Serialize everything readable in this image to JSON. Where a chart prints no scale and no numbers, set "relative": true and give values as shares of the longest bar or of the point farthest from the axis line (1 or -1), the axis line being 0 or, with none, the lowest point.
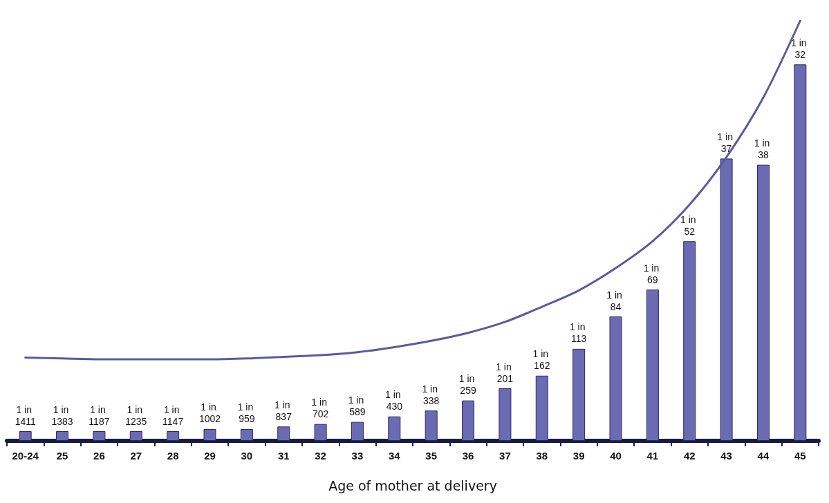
{
  "chart_data": {
    "type": "bar",
    "relative": true,
    "xlabel": "Age of mother at delivery",
    "grid": false,
    "categories": [
      "20-24",
      "25",
      "26",
      "27",
      "28",
      "29",
      "30",
      "31",
      "32",
      "33",
      "34",
      "35",
      "36",
      "37",
      "38",
      "39",
      "40",
      "41",
      "42",
      "43",
      "44",
      "45"
    ],
    "series": [
      {
        "color": "#6b6bb3",
        "values": [
          0.023,
          0.023,
          0.023,
          0.023,
          0.023,
          0.028,
          0.028,
          0.034,
          0.04,
          0.045,
          0.058,
          0.072,
          0.096,
          0.125,
          0.155,
          0.219,
          0.296,
          0.36,
          0.475,
          0.672,
          0.657,
          0.896
        ]
      },
      {
        "type": "line",
        "color": "#5a5aa0",
        "marker": "none",
        "line_style": "solid",
        "values": [
          0.198,
          0.196,
          0.194,
          0.194,
          0.194,
          0.194,
          0.196,
          0.2,
          0.204,
          0.211,
          0.223,
          0.238,
          0.257,
          0.283,
          0.319,
          0.358,
          0.411,
          0.475,
          0.562,
          0.675,
          0.817,
          1
        ]
      }
    ],
    "annotations": [
      {
        "text": "1 in 1411",
        "x": "20-24",
        "y": 0.023
      },
      {
        "text": "1 in 1383",
        "x": "25",
        "y": 0.023
      },
      {
        "text": "1 in 1187",
        "x": "26",
        "y": 0.023
      },
      {
        "text": "1 in 1235",
        "x": "27",
        "y": 0.023
      },
      {
        "text": "1 in 1147",
        "x": "28",
        "y": 0.023
      },
      {
        "text": "1 in 1002",
        "x": "29",
        "y": 0.028
      },
      {
        "text": "1 in 959",
        "x": "30",
        "y": 0.028
      },
      {
        "text": "1 in 837",
        "x": "31",
        "y": 0.034
      },
      {
        "text": "1 in 702",
        "x": "32",
        "y": 0.04
      },
      {
        "text": "1 in 589",
        "x": "33",
        "y": 0.045
      },
      {
        "text": "1 in 430",
        "x": "34",
        "y": 0.058
      },
      {
        "text": "1 in 338",
        "x": "35",
        "y": 0.072
      },
      {
        "text": "1 in 259",
        "x": "36",
        "y": 0.096
      },
      {
        "text": "1 in 201",
        "x": "37",
        "y": 0.125
      },
      {
        "text": "1 in 162",
        "x": "38",
        "y": 0.155
      },
      {
        "text": "1 in 113",
        "x": "39",
        "y": 0.219
      },
      {
        "text": "1 in 84",
        "x": "40",
        "y": 0.296
      },
      {
        "text": "1 in 69",
        "x": "41",
        "y": 0.36
      },
      {
        "text": "1 in 52",
        "x": "42",
        "y": 0.475
      },
      {
        "text": "1 in 37",
        "x": "43",
        "y": 0.672
      },
      {
        "text": "1 in 38",
        "x": "44",
        "y": 0.657
      },
      {
        "text": "1 in 32",
        "x": "45",
        "y": 0.896
      }
    ]
  }
}
